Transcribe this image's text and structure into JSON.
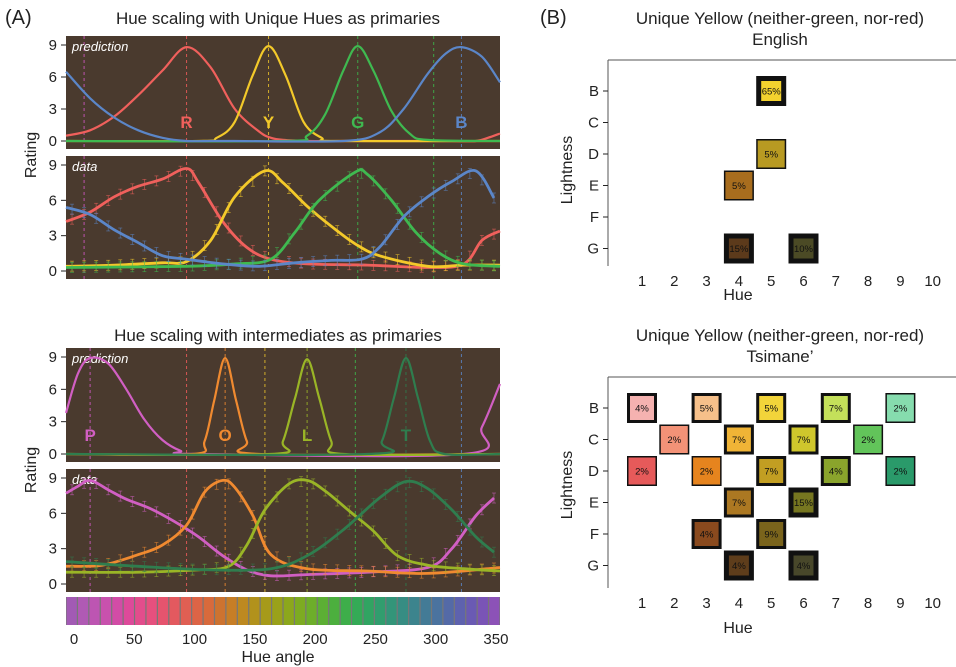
{
  "panel_a_label": "(A)",
  "panel_b_label": "(B)",
  "colorbar": {
    "xlabel": "Hue angle",
    "ticks": [
      0,
      50,
      100,
      150,
      200,
      250,
      300,
      350
    ],
    "colors": [
      "#a25ab4",
      "#b05ab4",
      "#bd55b2",
      "#c851ad",
      "#d24ca6",
      "#dd4a9a",
      "#e24d8c",
      "#e6507e",
      "#e6546e",
      "#e3595f",
      "#e05f53",
      "#dd6446",
      "#d86a3c",
      "#cd7330",
      "#c77e26",
      "#bd8920",
      "#b2921c",
      "#a69a1a",
      "#9aa11a",
      "#8ca71c",
      "#7dab22",
      "#6dae2a",
      "#5caf34",
      "#4caf3e",
      "#3eae4a",
      "#34aa56",
      "#31a462",
      "#319d6e",
      "#339579",
      "#378d83",
      "#3c848d",
      "#437b96",
      "#4b739f",
      "#546aa7",
      "#5e62ae",
      "#6a5ab3",
      "#7a54b6",
      "#8c52b7"
    ]
  },
  "chart_data": [
    {
      "id": "a-top-prediction",
      "type": "line",
      "title": "Hue scaling with Unique Hues as primaries",
      "panel_tag": "prediction",
      "ylabel": "Rating",
      "xlim": [
        0,
        360
      ],
      "ylim": [
        0,
        9
      ],
      "yticks": [
        0,
        3,
        6,
        9
      ],
      "guides": [
        {
          "x": 15,
          "color": "#d159c4"
        },
        {
          "x": 100,
          "color": "#ef5a5a"
        },
        {
          "x": 168,
          "color": "#e8c02a"
        },
        {
          "x": 242,
          "color": "#3cb84c"
        },
        {
          "x": 305,
          "color": "#3cb84c"
        },
        {
          "x": 328,
          "color": "#5b86c8"
        }
      ],
      "series": [
        {
          "name": "R",
          "color": "#f0605c",
          "label_x": 100,
          "x": [
            0,
            20,
            40,
            60,
            80,
            100,
            120,
            140,
            160,
            170,
            180,
            200,
            230,
            280,
            320,
            340,
            350,
            360
          ],
          "y": [
            0.5,
            1.0,
            2.3,
            4.3,
            6.6,
            8.8,
            6.9,
            3.0,
            0.9,
            0.3,
            0.1,
            0.0,
            0.0,
            0.0,
            0.0,
            0.0,
            0.3,
            0.7
          ]
        },
        {
          "name": "Y",
          "color": "#f3c92a",
          "label_x": 168,
          "x": [
            0,
            110,
            125,
            140,
            155,
            168,
            182,
            197,
            212,
            225,
            360
          ],
          "y": [
            0.0,
            0.0,
            0.3,
            1.8,
            6.2,
            8.9,
            6.2,
            1.8,
            0.3,
            0.0,
            0.0
          ]
        },
        {
          "name": "G",
          "color": "#3fb950",
          "label_x": 242,
          "x": [
            0,
            180,
            200,
            215,
            230,
            242,
            255,
            270,
            285,
            300,
            360
          ],
          "y": [
            0.0,
            0.0,
            0.5,
            2.5,
            6.6,
            8.9,
            6.6,
            2.8,
            0.7,
            0.1,
            0.0
          ]
        },
        {
          "name": "B",
          "color": "#5b86c8",
          "label_x": 328,
          "x": [
            0,
            20,
            40,
            60,
            80,
            100,
            120,
            140,
            230,
            260,
            280,
            300,
            315,
            328,
            345,
            360
          ],
          "y": [
            6.5,
            4.0,
            2.2,
            1.0,
            0.3,
            0.0,
            0.0,
            0.0,
            0.0,
            0.8,
            3.0,
            6.3,
            8.2,
            8.8,
            7.9,
            5.5
          ]
        }
      ]
    },
    {
      "id": "a-top-data",
      "type": "line",
      "panel_tag": "data",
      "xlim": [
        0,
        360
      ],
      "ylim": [
        0,
        9
      ],
      "yticks": [
        0,
        3,
        6,
        9
      ],
      "guides": [
        {
          "x": 15,
          "color": "#d159c4"
        },
        {
          "x": 100,
          "color": "#ef5a5a"
        },
        {
          "x": 168,
          "color": "#e8c02a"
        },
        {
          "x": 242,
          "color": "#3cb84c"
        },
        {
          "x": 305,
          "color": "#3cb84c"
        },
        {
          "x": 328,
          "color": "#5b86c8"
        }
      ],
      "series": [
        {
          "name": "",
          "color": "#f0605c",
          "x": [
            0,
            20,
            40,
            60,
            80,
            100,
            110,
            130,
            150,
            170,
            200,
            250,
            300,
            330,
            345,
            360
          ],
          "y": [
            4.2,
            5.0,
            6.3,
            7.2,
            7.8,
            8.7,
            7.5,
            4.2,
            2.0,
            1.0,
            0.6,
            0.5,
            0.3,
            0.6,
            2.6,
            3.4
          ]
        },
        {
          "name": "",
          "color": "#f3c92a",
          "x": [
            0,
            40,
            80,
            100,
            120,
            140,
            165,
            180,
            200,
            220,
            240,
            260,
            300,
            330,
            360
          ],
          "y": [
            0.4,
            0.5,
            0.7,
            0.8,
            2.6,
            6.3,
            8.5,
            7.5,
            5.5,
            3.8,
            2.3,
            1.3,
            0.4,
            0.5,
            0.5
          ]
        },
        {
          "name": "",
          "color": "#3fb950",
          "x": [
            0,
            100,
            140,
            170,
            190,
            210,
            240,
            250,
            270,
            290,
            310,
            330,
            360
          ],
          "y": [
            0.3,
            0.4,
            0.6,
            1.0,
            3.3,
            6.0,
            8.4,
            8.2,
            6.0,
            3.3,
            1.5,
            0.6,
            0.4
          ]
        },
        {
          "name": "",
          "color": "#5b86c8",
          "x": [
            0,
            20,
            40,
            60,
            80,
            100,
            130,
            160,
            190,
            220,
            245,
            260,
            280,
            300,
            320,
            340,
            355
          ],
          "y": [
            5.4,
            4.8,
            3.5,
            2.4,
            1.3,
            1.0,
            0.6,
            0.4,
            0.7,
            0.9,
            1.0,
            2.0,
            4.6,
            6.3,
            7.6,
            8.5,
            6.2
          ]
        }
      ]
    },
    {
      "id": "a-bottom-prediction",
      "type": "line",
      "title": "Hue scaling with intermediates as primaries",
      "panel_tag": "prediction",
      "ylabel": "Rating",
      "xlim": [
        0,
        360
      ],
      "ylim": [
        0,
        9
      ],
      "yticks": [
        0,
        3,
        6,
        9
      ],
      "guides": [
        {
          "x": 20,
          "color": "#d159c4"
        },
        {
          "x": 100,
          "color": "#ef5a5a"
        },
        {
          "x": 132,
          "color": "#f08a30"
        },
        {
          "x": 165,
          "color": "#e8c02a"
        },
        {
          "x": 200,
          "color": "#9ab526"
        },
        {
          "x": 240,
          "color": "#3cb84c"
        },
        {
          "x": 282,
          "color": "#2e7d4e"
        },
        {
          "x": 328,
          "color": "#5b86c8"
        }
      ],
      "series": [
        {
          "name": "P",
          "color": "#d15fc3",
          "label_x": 20,
          "x": [
            0,
            10,
            20,
            35,
            50,
            65,
            80,
            95,
            110,
            330,
            345,
            360
          ],
          "y": [
            3.8,
            7.5,
            8.9,
            8.4,
            6.0,
            3.2,
            1.3,
            0.3,
            0.0,
            0.0,
            2.5,
            6.5
          ]
        },
        {
          "name": "O",
          "color": "#f08a30",
          "label_x": 132,
          "x": [
            0,
            105,
            115,
            123,
            132,
            141,
            150,
            160,
            360
          ],
          "y": [
            0.0,
            0.0,
            1.2,
            5.0,
            8.9,
            5.0,
            1.2,
            0.0,
            0.0
          ]
        },
        {
          "name": "L",
          "color": "#9ab526",
          "label_x": 200,
          "x": [
            0,
            170,
            180,
            190,
            200,
            210,
            220,
            230,
            360
          ],
          "y": [
            0.0,
            0.0,
            1.2,
            5.2,
            8.8,
            5.2,
            1.2,
            0.0,
            0.0
          ]
        },
        {
          "name": "T",
          "color": "#2f7d4e",
          "label_x": 282,
          "x": [
            0,
            250,
            262,
            272,
            282,
            292,
            302,
            314,
            360
          ],
          "y": [
            0.0,
            0.0,
            1.2,
            5.2,
            8.9,
            5.2,
            1.2,
            0.0,
            0.0
          ]
        }
      ]
    },
    {
      "id": "a-bottom-data",
      "type": "line",
      "panel_tag": "data",
      "xlim": [
        0,
        360
      ],
      "ylim": [
        0,
        9
      ],
      "yticks": [
        0,
        3,
        6,
        9
      ],
      "guides": [
        {
          "x": 20,
          "color": "#d159c4"
        },
        {
          "x": 100,
          "color": "#ef5a5a"
        },
        {
          "x": 132,
          "color": "#f08a30"
        },
        {
          "x": 165,
          "color": "#e8c02a"
        },
        {
          "x": 200,
          "color": "#9ab526"
        },
        {
          "x": 240,
          "color": "#3cb84c"
        },
        {
          "x": 282,
          "color": "#2e7d4e"
        },
        {
          "x": 328,
          "color": "#5b86c8"
        }
      ],
      "series": [
        {
          "name": "",
          "color": "#d15fc3",
          "x": [
            0,
            10,
            20,
            35,
            50,
            70,
            90,
            110,
            130,
            150,
            170,
            200,
            250,
            300,
            320,
            340,
            355
          ],
          "y": [
            7.7,
            8.3,
            8.8,
            8.0,
            7.2,
            6.4,
            5.3,
            4.0,
            2.4,
            1.2,
            0.7,
            0.8,
            1.0,
            1.4,
            3.0,
            5.8,
            7.3
          ]
        },
        {
          "name": "",
          "color": "#f08a30",
          "x": [
            0,
            30,
            60,
            80,
            100,
            115,
            130,
            140,
            155,
            170,
            200,
            250,
            300,
            360
          ],
          "y": [
            1.5,
            1.6,
            2.5,
            3.3,
            5.0,
            7.8,
            8.8,
            8.2,
            5.8,
            2.5,
            1.3,
            1.1,
            0.9,
            1.4
          ]
        },
        {
          "name": "",
          "color": "#9ab526",
          "x": [
            0,
            60,
            110,
            135,
            150,
            165,
            185,
            200,
            215,
            235,
            255,
            275,
            300,
            330,
            360
          ],
          "y": [
            1.0,
            1.0,
            1.2,
            1.5,
            3.3,
            6.3,
            8.5,
            8.8,
            7.9,
            6.2,
            4.5,
            2.4,
            1.6,
            1.3,
            1.1
          ]
        },
        {
          "name": "",
          "color": "#2f7d4e",
          "x": [
            0,
            60,
            120,
            170,
            200,
            230,
            260,
            282,
            300,
            320,
            340,
            355
          ],
          "y": [
            1.9,
            1.5,
            1.2,
            1.3,
            2.4,
            4.6,
            7.3,
            8.7,
            8.1,
            6.3,
            4.0,
            2.7
          ]
        }
      ]
    },
    {
      "id": "b-english",
      "type": "heatmap",
      "title": "Unique Yellow (neither-green, nor-red)",
      "subtitle": "English",
      "xlabel": "Hue",
      "ylabel": "Lightness",
      "x_categories": [
        "1",
        "2",
        "3",
        "4",
        "5",
        "6",
        "7",
        "8",
        "9",
        "10"
      ],
      "y_categories": [
        "B",
        "C",
        "D",
        "E",
        "F",
        "G"
      ],
      "cells": [
        {
          "hue": 5,
          "lightness": "B",
          "label": "65%",
          "color": "#f3d22e",
          "border": "thick"
        },
        {
          "hue": 5,
          "lightness": "D",
          "label": "5%",
          "color": "#b89a22",
          "border": "thin"
        },
        {
          "hue": 4,
          "lightness": "E",
          "label": "5%",
          "color": "#a86d1e",
          "border": "thin"
        },
        {
          "hue": 4,
          "lightness": "G",
          "label": "15%",
          "color": "#5c3a1b",
          "border": "thick"
        },
        {
          "hue": 6,
          "lightness": "G",
          "label": "10%",
          "color": "#4b4a25",
          "border": "thick"
        }
      ]
    },
    {
      "id": "b-tsimane",
      "type": "heatmap",
      "title": "Unique Yellow (neither-green, nor-red)",
      "subtitle": "Tsimane’",
      "xlabel": "Hue",
      "ylabel": "Lightness",
      "x_categories": [
        "1",
        "2",
        "3",
        "4",
        "5",
        "6",
        "7",
        "8",
        "9",
        "10"
      ],
      "y_categories": [
        "B",
        "C",
        "D",
        "E",
        "F",
        "G"
      ],
      "cells": [
        {
          "hue": 1,
          "lightness": "B",
          "label": "4%",
          "color": "#f5b2b0",
          "border": "medium"
        },
        {
          "hue": 3,
          "lightness": "B",
          "label": "5%",
          "color": "#f6c08a",
          "border": "medium"
        },
        {
          "hue": 5,
          "lightness": "B",
          "label": "5%",
          "color": "#f2d43a",
          "border": "medium"
        },
        {
          "hue": 7,
          "lightness": "B",
          "label": "7%",
          "color": "#c4e05a",
          "border": "medium"
        },
        {
          "hue": 9,
          "lightness": "B",
          "label": "2%",
          "color": "#86dcae",
          "border": "thin"
        },
        {
          "hue": 2,
          "lightness": "C",
          "label": "2%",
          "color": "#f39277",
          "border": "thin"
        },
        {
          "hue": 4,
          "lightness": "C",
          "label": "7%",
          "color": "#f0b436",
          "border": "medium"
        },
        {
          "hue": 6,
          "lightness": "C",
          "label": "7%",
          "color": "#cfc62c",
          "border": "medium"
        },
        {
          "hue": 8,
          "lightness": "C",
          "label": "2%",
          "color": "#62c45a",
          "border": "thin"
        },
        {
          "hue": 1,
          "lightness": "D",
          "label": "2%",
          "color": "#e65a5a",
          "border": "thin"
        },
        {
          "hue": 3,
          "lightness": "D",
          "label": "2%",
          "color": "#e6841e",
          "border": "thin"
        },
        {
          "hue": 5,
          "lightness": "D",
          "label": "7%",
          "color": "#c29e22",
          "border": "medium"
        },
        {
          "hue": 7,
          "lightness": "D",
          "label": "4%",
          "color": "#8aa42c",
          "border": "medium"
        },
        {
          "hue": 9,
          "lightness": "D",
          "label": "2%",
          "color": "#2a9a6a",
          "border": "thin"
        },
        {
          "hue": 4,
          "lightness": "E",
          "label": "7%",
          "color": "#ac7822",
          "border": "medium"
        },
        {
          "hue": 6,
          "lightness": "E",
          "label": "15%",
          "color": "#767620",
          "border": "thick"
        },
        {
          "hue": 3,
          "lightness": "F",
          "label": "4%",
          "color": "#8a4a1e",
          "border": "medium"
        },
        {
          "hue": 5,
          "lightness": "F",
          "label": "9%",
          "color": "#7a641c",
          "border": "medium"
        },
        {
          "hue": 4,
          "lightness": "G",
          "label": "4%",
          "color": "#5e3d1b",
          "border": "thick"
        },
        {
          "hue": 6,
          "lightness": "G",
          "label": "4%",
          "color": "#48472a",
          "border": "thick"
        }
      ]
    }
  ]
}
